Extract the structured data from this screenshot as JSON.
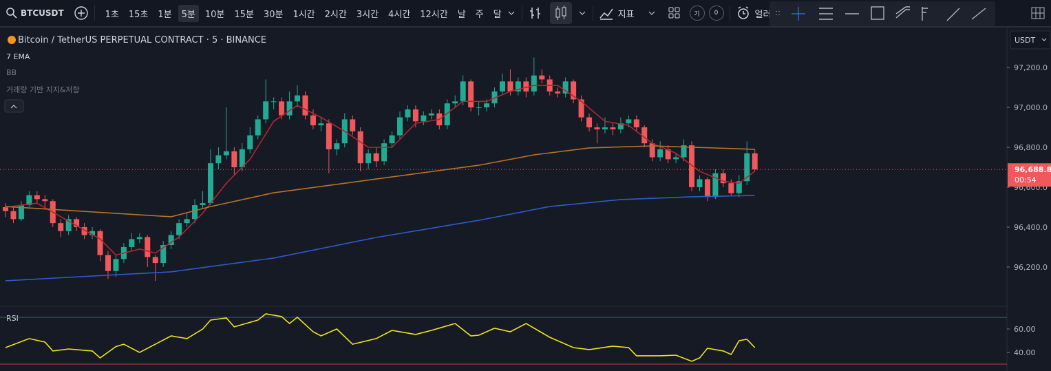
{
  "toolbar": {
    "symbol": "BTCUSDT",
    "intervals": [
      "1초",
      "15초",
      "1분",
      "5분",
      "10분",
      "15분",
      "30분",
      "1시간",
      "2시간",
      "3시간",
      "4시간",
      "12시간",
      "날",
      "주",
      "달"
    ],
    "active_interval": 3,
    "indicators": "지표",
    "badge": "기",
    "count": "0",
    "alert": "얼러"
  },
  "currency": "USDT",
  "chart_data": {
    "type": "candlestick",
    "title": "Bitcoin / TetherUS PERPETUAL CONTRACT · 5 · BINANCE",
    "legend": [
      "7 EMA",
      "BB",
      "거래량 기반 지지&저항"
    ],
    "up_color": "#22ab94",
    "down_color": "#f0585b",
    "ohlc": [
      [
        96500,
        96520,
        96450,
        96480
      ],
      [
        96480,
        96500,
        96420,
        96440
      ],
      [
        96440,
        96530,
        96430,
        96510
      ],
      [
        96510,
        96580,
        96500,
        96560
      ],
      [
        96560,
        96580,
        96520,
        96540
      ],
      [
        96540,
        96560,
        96500,
        96530
      ],
      [
        96530,
        96540,
        96400,
        96420
      ],
      [
        96420,
        96440,
        96350,
        96380
      ],
      [
        96380,
        96460,
        96360,
        96440
      ],
      [
        96440,
        96450,
        96380,
        96400
      ],
      [
        96400,
        96420,
        96340,
        96360
      ],
      [
        96360,
        96400,
        96340,
        96380
      ],
      [
        96380,
        96390,
        96230,
        96260
      ],
      [
        96260,
        96280,
        96140,
        96180
      ],
      [
        96180,
        96260,
        96150,
        96240
      ],
      [
        96240,
        96320,
        96220,
        96300
      ],
      [
        96300,
        96370,
        96280,
        96340
      ],
      [
        96340,
        96370,
        96320,
        96350
      ],
      [
        96350,
        96360,
        96200,
        96250
      ],
      [
        96250,
        96260,
        96130,
        96220
      ],
      [
        96220,
        96330,
        96200,
        96310
      ],
      [
        96310,
        96380,
        96290,
        96360
      ],
      [
        96360,
        96440,
        96340,
        96420
      ],
      [
        96420,
        96470,
        96400,
        96440
      ],
      [
        96440,
        96540,
        96420,
        96510
      ],
      [
        96510,
        96580,
        96490,
        96520
      ],
      [
        96520,
        96790,
        96510,
        96720
      ],
      [
        96720,
        96800,
        96690,
        96760
      ],
      [
        96760,
        97000,
        96740,
        96780
      ],
      [
        96780,
        96800,
        96660,
        96700
      ],
      [
        96700,
        96820,
        96680,
        96790
      ],
      [
        96790,
        96900,
        96770,
        96860
      ],
      [
        96860,
        96960,
        96840,
        96940
      ],
      [
        96940,
        97140,
        96920,
        97030
      ],
      [
        97030,
        97050,
        96990,
        97030
      ],
      [
        97030,
        97050,
        96940,
        96960
      ],
      [
        96960,
        97080,
        96940,
        97030
      ],
      [
        97030,
        97110,
        97000,
        97060
      ],
      [
        97060,
        97080,
        96940,
        96960
      ],
      [
        96960,
        96990,
        96890,
        96910
      ],
      [
        96910,
        96950,
        96880,
        96920
      ],
      [
        96920,
        96940,
        96670,
        96790
      ],
      [
        96790,
        96840,
        96760,
        96820
      ],
      [
        96820,
        96970,
        96800,
        96940
      ],
      [
        96940,
        96960,
        96860,
        96880
      ],
      [
        96880,
        96900,
        96680,
        96720
      ],
      [
        96720,
        96790,
        96690,
        96770
      ],
      [
        96770,
        96800,
        96700,
        96730
      ],
      [
        96730,
        96840,
        96710,
        96820
      ],
      [
        96820,
        96880,
        96800,
        96860
      ],
      [
        96860,
        96980,
        96840,
        96950
      ],
      [
        96950,
        97010,
        96930,
        96990
      ],
      [
        96990,
        97010,
        96900,
        96930
      ],
      [
        96930,
        96980,
        96910,
        96960
      ],
      [
        96960,
        96990,
        96940,
        96970
      ],
      [
        96970,
        96990,
        96890,
        96910
      ],
      [
        96910,
        97040,
        96890,
        97020
      ],
      [
        97020,
        97060,
        97000,
        97030
      ],
      [
        97030,
        97160,
        97010,
        97130
      ],
      [
        97130,
        97140,
        96980,
        97000
      ],
      [
        97000,
        97030,
        96960,
        97000
      ],
      [
        97000,
        97040,
        96980,
        97020
      ],
      [
        97020,
        97100,
        97000,
        97080
      ],
      [
        97080,
        97170,
        97060,
        97130
      ],
      [
        97130,
        97190,
        97060,
        97080
      ],
      [
        97080,
        97150,
        97060,
        97130
      ],
      [
        97130,
        97150,
        97050,
        97080
      ],
      [
        97080,
        97250,
        97060,
        97160
      ],
      [
        97160,
        97190,
        97120,
        97140
      ],
      [
        97140,
        97160,
        97060,
        97080
      ],
      [
        97080,
        97100,
        97050,
        97070
      ],
      [
        97070,
        97150,
        97050,
        97130
      ],
      [
        97130,
        97140,
        97020,
        97040
      ],
      [
        97040,
        97060,
        96930,
        96950
      ],
      [
        96950,
        96970,
        96880,
        96900
      ],
      [
        96900,
        96920,
        96820,
        96890
      ],
      [
        96890,
        96950,
        96870,
        96900
      ],
      [
        96900,
        96920,
        96860,
        96890
      ],
      [
        96890,
        96950,
        96870,
        96920
      ],
      [
        96920,
        96960,
        96900,
        96940
      ],
      [
        96940,
        96960,
        96880,
        96900
      ],
      [
        96900,
        96910,
        96800,
        96820
      ],
      [
        96820,
        96840,
        96730,
        96750
      ],
      [
        96750,
        96830,
        96730,
        96790
      ],
      [
        96790,
        96810,
        96720,
        96740
      ],
      [
        96740,
        96770,
        96720,
        96750
      ],
      [
        96750,
        96840,
        96730,
        96810
      ],
      [
        96810,
        96830,
        96580,
        96600
      ],
      [
        96600,
        96660,
        96580,
        96640
      ],
      [
        96640,
        96650,
        96530,
        96550
      ],
      [
        96550,
        96690,
        96540,
        96670
      ],
      [
        96670,
        96690,
        96600,
        96620
      ],
      [
        96620,
        96640,
        96560,
        96570
      ],
      [
        96570,
        96660,
        96550,
        96630
      ],
      [
        96630,
        96830,
        96610,
        96770
      ],
      [
        96770,
        96790,
        96680,
        96688.8
      ]
    ],
    "ylim": [
      96010,
      97383
    ],
    "yticks": [
      {
        "value": 96200,
        "label": "96,200.0"
      },
      {
        "value": 96400,
        "label": "96,400.0"
      },
      {
        "value": 96600,
        "label": "96,600.0"
      },
      {
        "value": 96800,
        "label": "96,800.0"
      },
      {
        "value": 97000,
        "label": "97,000.0"
      },
      {
        "value": 97200,
        "label": "97,200.0"
      }
    ],
    "last_price": {
      "value": 96688.8,
      "label": "96,688.8"
    },
    "countdown": "00:54",
    "series": [
      {
        "color": "#b3262e",
        "x": [
          0,
          4,
          8,
          12,
          14,
          17,
          19,
          22,
          25,
          28,
          31,
          34,
          37,
          40,
          43,
          46,
          49,
          52,
          55,
          58,
          61,
          64,
          67,
          70,
          73,
          76,
          79,
          82,
          85,
          88,
          91,
          93,
          95
        ],
        "values": [
          96500,
          96520,
          96430,
          96340,
          96260,
          96290,
          96270,
          96350,
          96470,
          96620,
          96740,
          96930,
          97010,
          96950,
          96880,
          96800,
          96800,
          96920,
          96940,
          97030,
          97030,
          97080,
          97110,
          97110,
          97030,
          96930,
          96910,
          96820,
          96770,
          96680,
          96630,
          96620,
          96680
        ]
      },
      {
        "color": "#b8732a",
        "x": [
          0,
          21,
          26,
          34,
          47,
          60,
          67,
          74,
          82,
          95
        ],
        "values": [
          96503,
          96452,
          96503,
          96572,
          96641,
          96710,
          96762,
          96797,
          96807,
          96790
        ]
      },
      {
        "color": "#2d5cc8",
        "x": [
          0,
          13,
          21,
          34,
          47,
          60,
          69,
          78,
          87,
          95
        ],
        "values": [
          96131,
          96159,
          96176,
          96245,
          96348,
          96434,
          96503,
          96538,
          96552,
          96559
        ]
      }
    ],
    "rsi": {
      "title": "RSI",
      "color": "#f2e31a",
      "ylim": [
        24.1,
        78.2
      ],
      "yticks": [
        {
          "value": 40,
          "label": "40.00"
        },
        {
          "value": 60,
          "label": "60.00"
        }
      ],
      "levels": [
        {
          "value": 70,
          "color": "#3c4fc4"
        },
        {
          "value": 30,
          "color": "#c43a3a"
        }
      ],
      "x": [
        0,
        3,
        5,
        6,
        8,
        11,
        12,
        14,
        15,
        17,
        19,
        21,
        23,
        25,
        26,
        28,
        29,
        32,
        33,
        35,
        36,
        37,
        39,
        40,
        42,
        44,
        47,
        49,
        52,
        54,
        57,
        59,
        60,
        62,
        64,
        66,
        69,
        72,
        74,
        77,
        79,
        80,
        83,
        85,
        87,
        88,
        89,
        91,
        92,
        93,
        94,
        95
      ],
      "values": [
        44.1,
        51.8,
        48.8,
        41.2,
        42.9,
        41.2,
        35.3,
        45,
        47,
        40,
        47,
        54.1,
        51.8,
        60,
        67.6,
        69.4,
        61.8,
        67.6,
        72.9,
        70.6,
        64.7,
        70,
        57.6,
        54.1,
        60,
        47,
        51.8,
        58.8,
        55.3,
        58.8,
        64.7,
        54.1,
        54.7,
        60.6,
        57.6,
        64.7,
        52.9,
        44.1,
        42.4,
        45.3,
        44.1,
        37.1,
        37.1,
        37.6,
        32.4,
        35.3,
        43.5,
        41.2,
        38.2,
        50,
        51.2,
        44.1
      ]
    }
  }
}
